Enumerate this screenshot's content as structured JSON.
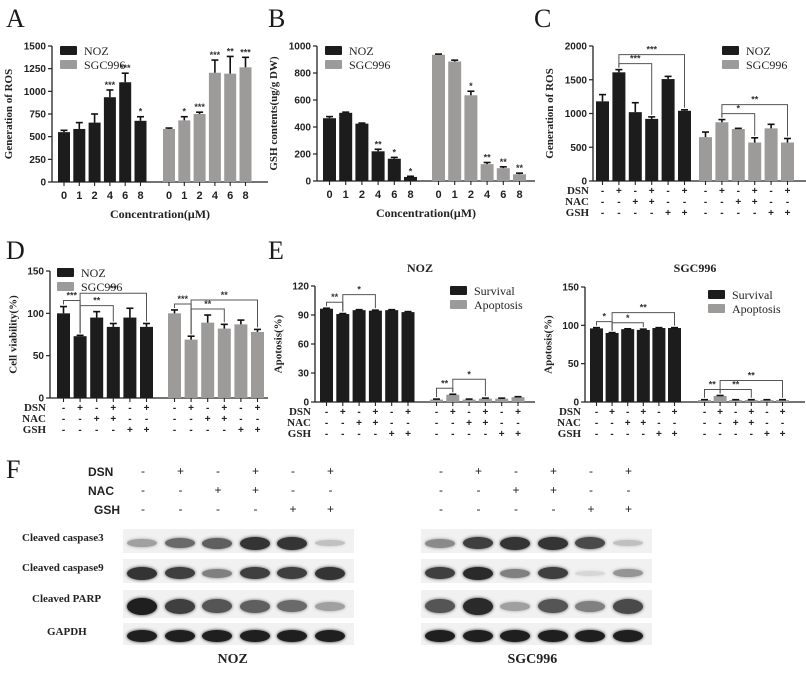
{
  "figure": {
    "panel_letters": [
      "A",
      "B",
      "C",
      "D",
      "E",
      "F"
    ],
    "colors": {
      "noz": "#1c1c1c",
      "sgc996": "#9d9a9a",
      "survival": "#1c1c1c",
      "apoptosis": "#9d9a9a"
    }
  },
  "chart_data": [
    {
      "id": "A",
      "type": "bar",
      "title": "",
      "xlabel": "Concentration(μM)",
      "ylabel": "Generation of ROS",
      "ylim": [
        0,
        1500
      ],
      "yticks": [
        0,
        250,
        500,
        750,
        1000,
        1250,
        1500
      ],
      "categories": [
        "0",
        "1",
        "2",
        "4",
        "6",
        "8"
      ],
      "legend": [
        "NOZ",
        "SGC996"
      ],
      "legend_position": "top-left",
      "series": [
        {
          "name": "NOZ",
          "values": [
            550,
            585,
            655,
            935,
            1100,
            675
          ],
          "errors": [
            20,
            70,
            95,
            80,
            100,
            45
          ],
          "sig": [
            "",
            "",
            "",
            "***",
            "***",
            "*"
          ]
        },
        {
          "name": "SGC996",
          "values": [
            585,
            680,
            750,
            1205,
            1195,
            1265
          ],
          "errors": [
            10,
            40,
            20,
            140,
            190,
            110
          ],
          "sig": [
            "",
            "*",
            "***",
            "***",
            "**",
            "***"
          ]
        }
      ]
    },
    {
      "id": "B",
      "type": "bar",
      "title": "",
      "xlabel": "Concentration(μM)",
      "ylabel": "GSH contents(ug/g DW)",
      "ylim": [
        0,
        1000
      ],
      "yticks": [
        0,
        200,
        400,
        600,
        800,
        1000
      ],
      "categories": [
        "0",
        "1",
        "2",
        "4",
        "6",
        "8"
      ],
      "legend": [
        "NOZ",
        "SGC996"
      ],
      "legend_position": "top-left",
      "series": [
        {
          "name": "NOZ",
          "values": [
            465,
            505,
            425,
            220,
            165,
            30
          ],
          "errors": [
            12,
            5,
            4,
            15,
            10,
            5
          ],
          "sig": [
            "",
            "",
            "",
            "**",
            "*",
            "*"
          ]
        },
        {
          "name": "SGC996",
          "values": [
            935,
            885,
            635,
            125,
            95,
            50
          ],
          "errors": [
            5,
            10,
            30,
            12,
            10,
            8
          ],
          "sig": [
            "",
            "",
            "*",
            "**",
            "**",
            "**"
          ]
        }
      ]
    },
    {
      "id": "C",
      "type": "bar",
      "title": "",
      "xlabel": "",
      "ylabel": "Generation of ROS",
      "ylim": [
        0,
        2000
      ],
      "yticks": [
        0,
        500,
        1000,
        1500,
        2000
      ],
      "conditions": {
        "DSN": [
          "-",
          "+",
          "-",
          "+",
          "-",
          "+"
        ],
        "NAC": [
          "-",
          "-",
          "+",
          "+",
          "-",
          "-"
        ],
        "GSH": [
          "-",
          "-",
          "-",
          "-",
          "+",
          "+"
        ]
      },
      "legend": [
        "NOZ",
        "SGC996"
      ],
      "legend_position": "top-right",
      "series": [
        {
          "name": "NOZ",
          "values": [
            1180,
            1610,
            1020,
            920,
            1510,
            1040
          ],
          "errors": [
            100,
            40,
            140,
            30,
            40,
            15
          ]
        },
        {
          "name": "SGC996",
          "values": [
            650,
            870,
            770,
            570,
            780,
            570
          ],
          "errors": [
            75,
            40,
            10,
            70,
            60,
            60
          ]
        }
      ],
      "brackets": [
        {
          "series": 0,
          "from": 1,
          "to": 3,
          "label": "***",
          "level": 1
        },
        {
          "series": 0,
          "from": 1,
          "to": 5,
          "label": "***",
          "level": 2
        },
        {
          "series": 1,
          "from": 1,
          "to": 3,
          "label": "*",
          "level": 1
        },
        {
          "series": 1,
          "from": 1,
          "to": 5,
          "label": "**",
          "level": 2
        }
      ]
    },
    {
      "id": "D",
      "type": "bar",
      "title": "",
      "xlabel": "",
      "ylabel": "Cell viability(%)",
      "ylim": [
        0,
        150
      ],
      "yticks": [
        0,
        50,
        100,
        150
      ],
      "conditions": {
        "DSN": [
          "-",
          "+",
          "-",
          "+",
          "-",
          "+"
        ],
        "NAC": [
          "-",
          "-",
          "+",
          "+",
          "-",
          "-"
        ],
        "GSH": [
          "-",
          "-",
          "-",
          "-",
          "+",
          "+"
        ]
      },
      "legend": [
        "NOZ",
        "SGC996"
      ],
      "legend_position": "top-left",
      "series": [
        {
          "name": "NOZ",
          "values": [
            100,
            73,
            95,
            84,
            95,
            84
          ],
          "errors": [
            8,
            1,
            7,
            4,
            11,
            4
          ]
        },
        {
          "name": "SGC996",
          "values": [
            100,
            69,
            89,
            82,
            87,
            78
          ],
          "errors": [
            4,
            4,
            9,
            5,
            5,
            3
          ]
        }
      ],
      "brackets": [
        {
          "series": 0,
          "from": 0,
          "to": 1,
          "label": "***",
          "level": 1
        },
        {
          "series": 0,
          "from": 1,
          "to": 3,
          "label": "**",
          "level": 1
        },
        {
          "series": 0,
          "from": 1,
          "to": 5,
          "label": "**",
          "level": 2
        },
        {
          "series": 1,
          "from": 0,
          "to": 1,
          "label": "***",
          "level": 1
        },
        {
          "series": 1,
          "from": 1,
          "to": 3,
          "label": "**",
          "level": 1
        },
        {
          "series": 1,
          "from": 1,
          "to": 5,
          "label": "**",
          "level": 2
        }
      ]
    },
    {
      "id": "E-NOZ",
      "type": "bar",
      "title": "NOZ",
      "xlabel": "",
      "ylabel": "Apotosis(%)",
      "ylim": [
        0,
        120
      ],
      "yticks": [
        0,
        30,
        60,
        90,
        120
      ],
      "conditions": {
        "DSN": [
          "-",
          "+",
          "-",
          "+",
          "-",
          "+"
        ],
        "NAC": [
          "-",
          "-",
          "+",
          "+",
          "-",
          "-"
        ],
        "GSH": [
          "-",
          "-",
          "-",
          "-",
          "+",
          "+"
        ]
      },
      "legend": [
        "Survival",
        "Apoptosis"
      ],
      "legend_position": "top-right",
      "series": [
        {
          "name": "Survival",
          "values": [
            96.5,
            91,
            95,
            94.5,
            95,
            93
          ],
          "errors": [
            0.5,
            0.5,
            0.5,
            0.5,
            0.5,
            0.5
          ]
        },
        {
          "name": "Apoptosis",
          "values": [
            2.5,
            7.5,
            2.5,
            3.5,
            3.5,
            5
          ],
          "errors": [
            0.5,
            0.5,
            0.5,
            0.5,
            0.5,
            0.5
          ]
        }
      ],
      "brackets": [
        {
          "series": 0,
          "from": 0,
          "to": 1,
          "label": "**",
          "level": 1
        },
        {
          "series": 0,
          "from": 1,
          "to": 3,
          "label": "*",
          "level": 2
        },
        {
          "series": 1,
          "from": 0,
          "to": 1,
          "label": "**",
          "level": 1
        },
        {
          "series": 1,
          "from": 1,
          "to": 3,
          "label": "*",
          "level": 2
        }
      ]
    },
    {
      "id": "E-SGC996",
      "type": "bar",
      "title": "SGC996",
      "xlabel": "",
      "ylabel": "Apotosis(%)",
      "ylim": [
        0,
        150
      ],
      "yticks": [
        0,
        50,
        100,
        150
      ],
      "conditions": {
        "DSN": [
          "-",
          "+",
          "-",
          "+",
          "-",
          "+"
        ],
        "NAC": [
          "-",
          "-",
          "+",
          "+",
          "-",
          "-"
        ],
        "GSH": [
          "-",
          "-",
          "-",
          "-",
          "+",
          "+"
        ]
      },
      "legend": [
        "Survival",
        "Apoptosis"
      ],
      "legend_position": "top-right",
      "series": [
        {
          "name": "Survival",
          "values": [
            96,
            90,
            95,
            94,
            96.5,
            96.5
          ],
          "errors": [
            1,
            0.5,
            0.5,
            1,
            0.5,
            0.5
          ]
        },
        {
          "name": "Apoptosis",
          "values": [
            2.5,
            8,
            2.5,
            2.5,
            2.5,
            2.5
          ],
          "errors": [
            0.5,
            0.5,
            0.5,
            0.5,
            0.5,
            0.5
          ]
        }
      ],
      "brackets": [
        {
          "series": 0,
          "from": 0,
          "to": 1,
          "label": "*",
          "level": 1
        },
        {
          "series": 0,
          "from": 1,
          "to": 3,
          "label": "*",
          "level": 1
        },
        {
          "series": 0,
          "from": 1,
          "to": 5,
          "label": "**",
          "level": 2
        },
        {
          "series": 1,
          "from": 0,
          "to": 1,
          "label": "**",
          "level": 1
        },
        {
          "series": 1,
          "from": 1,
          "to": 3,
          "label": "**",
          "level": 1
        },
        {
          "series": 1,
          "from": 1,
          "to": 5,
          "label": "**",
          "level": 2
        }
      ]
    }
  ],
  "western_blot": {
    "id": "F",
    "conditions": {
      "DSN": [
        "-",
        "+",
        "-",
        "+",
        "-",
        "+"
      ],
      "NAC": [
        "-",
        "-",
        "+",
        "+",
        "-",
        "-"
      ],
      "GSH": [
        "-",
        "-",
        "-",
        "-",
        "+",
        "+"
      ]
    },
    "rows": [
      "Cleaved caspase3",
      "Cleaved caspase9",
      "Cleaved PARP",
      "GAPDH"
    ],
    "cell_lines": [
      {
        "name": "NOZ",
        "intensity": [
          [
            0.35,
            0.6,
            0.65,
            0.85,
            0.85,
            0.2
          ],
          [
            0.85,
            0.8,
            0.5,
            0.8,
            0.8,
            0.85
          ],
          [
            0.95,
            0.8,
            0.7,
            0.65,
            0.6,
            0.35
          ],
          [
            0.95,
            0.95,
            0.95,
            0.95,
            0.95,
            0.95
          ]
        ]
      },
      {
        "name": "SGC996",
        "intensity": [
          [
            0.45,
            0.8,
            0.85,
            0.85,
            0.75,
            0.2
          ],
          [
            0.8,
            0.9,
            0.5,
            0.8,
            0.1,
            0.4
          ],
          [
            0.7,
            0.9,
            0.35,
            0.7,
            0.5,
            0.75
          ],
          [
            0.95,
            0.95,
            0.95,
            0.95,
            0.95,
            0.95
          ]
        ]
      }
    ]
  }
}
